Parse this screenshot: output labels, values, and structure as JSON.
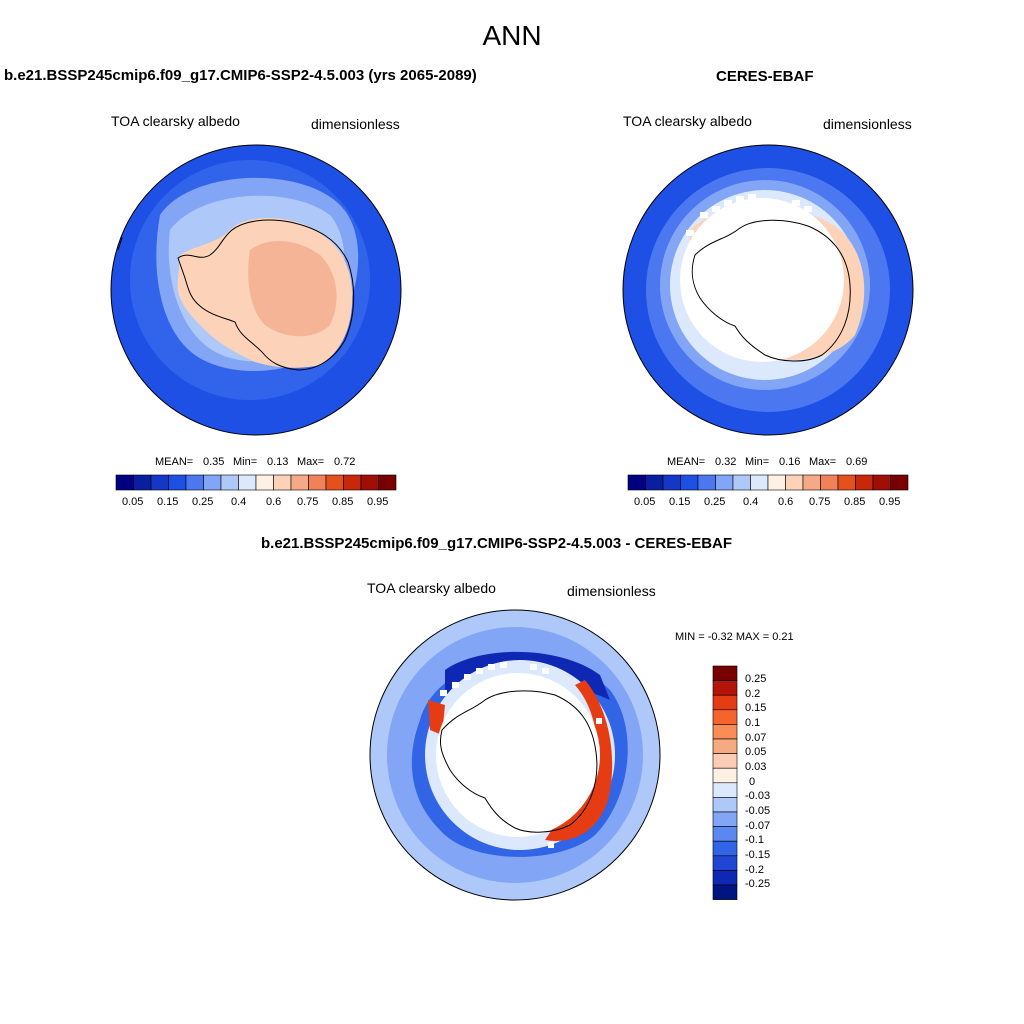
{
  "title": "ANN",
  "colors": {
    "abs_scale": [
      "#000080",
      "#0a1ea0",
      "#1437c8",
      "#1e50e6",
      "#4b78f0",
      "#82a5f5",
      "#afc8fa",
      "#dce8fc",
      "#fff0e4",
      "#fcd2b9",
      "#f5aa87",
      "#f0825a",
      "#e6501e",
      "#c8280a",
      "#a00f05",
      "#780000"
    ],
    "diff_scale": [
      "#780000",
      "#b4140a",
      "#e63c14",
      "#f5642d",
      "#fa8c55",
      "#f5aa82",
      "#fccdb4",
      "#fff0e4",
      "#dce8fc",
      "#afc8fa",
      "#82a5f5",
      "#5a87f0",
      "#3264e6",
      "#1e46d2",
      "#0f28b4",
      "#001482"
    ],
    "ocean_dark": "#1e50e6",
    "ice_light": "#afc8fa",
    "land_peach": "#f5b496",
    "land_pale": "#fcd2b9"
  },
  "panel_left": {
    "title": "b.e21.BSSP245cmip6.f09_g17.CMIP6-SSP2-4.5.003 (yrs 2065-2089)",
    "var": "TOA clearsky albedo",
    "units": "dimensionless",
    "mean_label": "MEAN=",
    "mean": "0.35",
    "min_label": "Min=",
    "min": "0.13",
    "max_label": "Max=",
    "max": "0.72"
  },
  "panel_right": {
    "title": "CERES-EBAF",
    "var": "TOA clearsky albedo",
    "units": "dimensionless",
    "mean_label": "MEAN=",
    "mean": "0.32",
    "min_label": "Min=",
    "min": "0.16",
    "max_label": "Max=",
    "max": "0.69"
  },
  "panel_diff": {
    "title": "b.e21.BSSP245cmip6.f09_g17.CMIP6-SSP2-4.5.003 - CERES-EBAF",
    "var": "TOA clearsky albedo",
    "units": "dimensionless",
    "minmax_label": "MIN =  -0.32 MAX =   0.21"
  },
  "abs_ticks": [
    "0.05",
    "0.15",
    "0.25",
    "0.4",
    "0.6",
    "0.75",
    "0.85",
    "0.95"
  ],
  "diff_ticks": [
    "0.25",
    "0.2",
    "0.15",
    "0.1",
    "0.07",
    "0.05",
    "0.03",
    "0",
    "-0.03",
    "-0.05",
    "-0.07",
    "-0.1",
    "-0.15",
    "-0.2",
    "-0.25"
  ]
}
